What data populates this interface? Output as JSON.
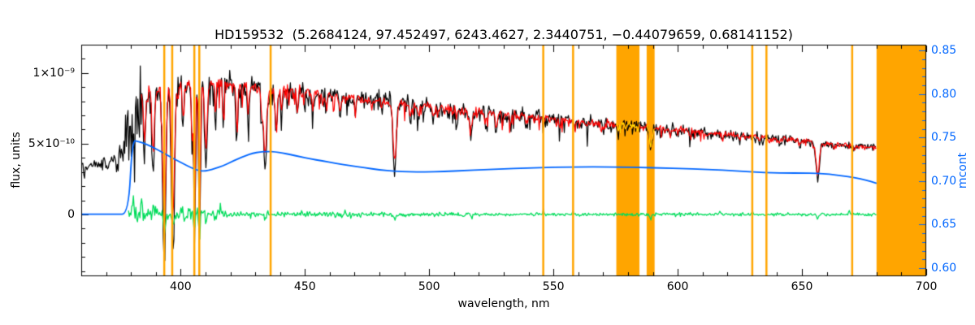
{
  "title": "HD159532  (5.2684124, 97.452497, 6243.4627, 2.3440751, −0.44079659, 0.68141152)",
  "star_id": "HD159532",
  "title_values": [
    5.2684124,
    97.452497,
    6243.4627,
    2.3440751,
    -0.44079659,
    0.68141152
  ],
  "colors": {
    "background": "#ffffff",
    "frame": "#000000",
    "observed": "#000000",
    "fit": "#ff0000",
    "fit_in_mask": "#ffe400",
    "residual": "#00dc5a",
    "mcont": "#0066ff",
    "mask": "#ffa500"
  },
  "axes": {
    "x": {
      "label": "wavelength, nm",
      "major_ticks": [
        400,
        450,
        500,
        550,
        600,
        650,
        700
      ],
      "minor_step": 10
    },
    "y_left": {
      "label": "flux, units",
      "ticks": [
        {
          "value_1e10": 0,
          "label": "0"
        },
        {
          "value_1e10": 5,
          "label": "5×10⁻¹⁰"
        },
        {
          "value_1e10": 10,
          "label": "1×10⁻⁹"
        }
      ],
      "minor_step_1e10": 1
    },
    "y_right": {
      "label": "mcont",
      "ticks": [
        {
          "value": 0.6,
          "label": "0.60"
        },
        {
          "value": 0.65,
          "label": "0.65"
        },
        {
          "value": 0.7,
          "label": "0.70"
        },
        {
          "value": 0.75,
          "label": "0.75"
        },
        {
          "value": 0.8,
          "label": "0.80"
        },
        {
          "value": 0.85,
          "label": "0.85"
        }
      ],
      "minor_step": 0.01
    }
  },
  "chart_data": {
    "type": "line",
    "title": "HD159532  (5.2684124, 97.452497, 6243.4627, 2.3440751, −0.44079659, 0.68141152)",
    "xlabel": "wavelength, nm",
    "ylabel_left": "flux, units",
    "ylabel_right": "mcont",
    "xlim": [
      360,
      700
    ],
    "ylim_left": [
      -4.37e-10,
      1.2e-09
    ],
    "ylim_left_1e10": [
      -4.37,
      12.0
    ],
    "ylim_right": [
      0.5907,
      0.8566
    ],
    "flux_unit_scale": 1e-10,
    "grid": false,
    "legend": "none",
    "series": {
      "observed": {
        "name": "observed spectrum",
        "color_key": "observed",
        "axis": "left",
        "range_nm": [
          360,
          680
        ],
        "continuum_1e10": [
          [
            360,
            3.4
          ],
          [
            364,
            3.5
          ],
          [
            368,
            3.5
          ],
          [
            372,
            3.6
          ],
          [
            376,
            4.6
          ],
          [
            380,
            7.2
          ],
          [
            383,
            8.5
          ],
          [
            386,
            8.7
          ],
          [
            390,
            8.9
          ],
          [
            394,
            9.1
          ],
          [
            398,
            9.25
          ],
          [
            402,
            9.2
          ],
          [
            406,
            9.1
          ],
          [
            410,
            9.2
          ],
          [
            414,
            9.3
          ],
          [
            418,
            9.25
          ],
          [
            422,
            9.15
          ],
          [
            426,
            9.05
          ],
          [
            430,
            9.0
          ],
          [
            435,
            8.9
          ],
          [
            440,
            8.8
          ],
          [
            445,
            8.75
          ],
          [
            450,
            8.65
          ],
          [
            455,
            8.55
          ],
          [
            460,
            8.45
          ],
          [
            465,
            8.35
          ],
          [
            470,
            8.25
          ],
          [
            475,
            8.15
          ],
          [
            480,
            8.05
          ],
          [
            485,
            7.95
          ],
          [
            490,
            7.85
          ],
          [
            495,
            7.75
          ],
          [
            500,
            7.65
          ],
          [
            505,
            7.55
          ],
          [
            510,
            7.45
          ],
          [
            515,
            7.38
          ],
          [
            520,
            7.3
          ],
          [
            525,
            7.2
          ],
          [
            530,
            7.12
          ],
          [
            535,
            7.05
          ],
          [
            540,
            6.97
          ],
          [
            545,
            6.9
          ],
          [
            550,
            6.82
          ],
          [
            555,
            6.74
          ],
          [
            560,
            6.66
          ],
          [
            565,
            6.58
          ],
          [
            570,
            6.5
          ],
          [
            575,
            6.42
          ],
          [
            580,
            6.33
          ],
          [
            585,
            6.25
          ],
          [
            590,
            6.17
          ],
          [
            595,
            6.08
          ],
          [
            600,
            6.0
          ],
          [
            605,
            5.92
          ],
          [
            610,
            5.84
          ],
          [
            615,
            5.76
          ],
          [
            620,
            5.68
          ],
          [
            625,
            5.6
          ],
          [
            630,
            5.52
          ],
          [
            635,
            5.44
          ],
          [
            640,
            5.36
          ],
          [
            645,
            5.28
          ],
          [
            650,
            5.2
          ],
          [
            655,
            5.12
          ],
          [
            660,
            5.02
          ],
          [
            665,
            4.95
          ],
          [
            670,
            4.88
          ],
          [
            675,
            4.82
          ],
          [
            680,
            4.76
          ]
        ]
      },
      "fit": {
        "name": "fitted template spectrum",
        "color_key": "fit",
        "axis": "left",
        "range_nm": [
          384.2,
          680
        ],
        "line_depth_factor": 0.82,
        "noise_factor": 0.6
      },
      "residual": {
        "name": "residual (observed - fit)",
        "color_key": "residual",
        "axis": "left",
        "range_nm": [
          379,
          680
        ],
        "zero_level_1e10": 0,
        "amplitude_profile": [
          [
            379,
            0.55
          ],
          [
            386,
            0.55
          ],
          [
            386.1,
            0.4
          ],
          [
            418,
            0.4
          ],
          [
            418.1,
            0.22
          ],
          [
            470,
            0.22
          ],
          [
            470.1,
            0.15
          ],
          [
            520,
            0.15
          ],
          [
            520.1,
            0.11
          ],
          [
            680,
            0.11
          ]
        ],
        "spikes": [
          {
            "nm": 380.8,
            "amp": 1.5,
            "width": 0.5
          },
          {
            "nm": 382.6,
            "amp": -1.0,
            "width": 0.35
          },
          {
            "nm": 384.2,
            "amp": 1.2,
            "width": 0.4
          },
          {
            "nm": 389.0,
            "amp": 0.7,
            "width": 0.4
          },
          {
            "nm": 393.4,
            "amp": -2.1,
            "width": 0.45
          },
          {
            "nm": 396.9,
            "amp": -1.9,
            "width": 0.45
          },
          {
            "nm": 400.3,
            "amp": 0.9,
            "width": 0.35
          },
          {
            "nm": 405.5,
            "amp": -2.0,
            "width": 0.4
          },
          {
            "nm": 407.6,
            "amp": -2.2,
            "width": 0.4
          },
          {
            "nm": 410.2,
            "amp": -0.8,
            "width": 0.5
          },
          {
            "nm": 416.0,
            "amp": 0.5,
            "width": 0.35
          },
          {
            "nm": 434.0,
            "amp": -0.6,
            "width": 0.5
          },
          {
            "nm": 452.0,
            "amp": 0.35,
            "width": 0.35
          },
          {
            "nm": 486.1,
            "amp": -0.5,
            "width": 0.5
          },
          {
            "nm": 517.0,
            "amp": -0.3,
            "width": 0.4
          },
          {
            "nm": 546.0,
            "amp": 0.45,
            "width": 0.35
          },
          {
            "nm": 557.9,
            "amp": 0.35,
            "width": 0.3
          },
          {
            "nm": 589.2,
            "amp": -0.4,
            "width": 0.5
          },
          {
            "nm": 617.0,
            "amp": 0.25,
            "width": 0.3
          },
          {
            "nm": 630.0,
            "amp": 0.3,
            "width": 0.3
          },
          {
            "nm": 656.3,
            "amp": -0.55,
            "width": 0.5
          },
          {
            "nm": 669.0,
            "amp": 0.3,
            "width": 0.3
          }
        ]
      },
      "mcont": {
        "name": "multiplicative continuum (mcont)",
        "color_key": "mcont",
        "axis": "right",
        "points": [
          [
            360,
            0.662
          ],
          [
            368,
            0.662
          ],
          [
            374,
            0.662
          ],
          [
            379,
            0.662
          ],
          [
            380.5,
            0.747
          ],
          [
            383,
            0.7455
          ],
          [
            386,
            0.7425
          ],
          [
            389,
            0.7385
          ],
          [
            392,
            0.734
          ],
          [
            395,
            0.729
          ],
          [
            398,
            0.7245
          ],
          [
            401,
            0.72
          ],
          [
            404,
            0.7155
          ],
          [
            407,
            0.7122
          ],
          [
            409,
            0.7115
          ],
          [
            411,
            0.712
          ],
          [
            414,
            0.7145
          ],
          [
            417,
            0.7175
          ],
          [
            420,
            0.7215
          ],
          [
            423,
            0.7255
          ],
          [
            426,
            0.729
          ],
          [
            429,
            0.732
          ],
          [
            432,
            0.7335
          ],
          [
            435,
            0.734
          ],
          [
            438,
            0.7335
          ],
          [
            441,
            0.7322
          ],
          [
            444,
            0.7305
          ],
          [
            448,
            0.728
          ],
          [
            452,
            0.7255
          ],
          [
            457,
            0.7232
          ],
          [
            462,
            0.7205
          ],
          [
            468,
            0.7178
          ],
          [
            474,
            0.7152
          ],
          [
            480,
            0.713
          ],
          [
            486,
            0.7112
          ],
          [
            492,
            0.7105
          ],
          [
            498,
            0.7105
          ],
          [
            506,
            0.711
          ],
          [
            514,
            0.712
          ],
          [
            522,
            0.713
          ],
          [
            530,
            0.714
          ],
          [
            538,
            0.7148
          ],
          [
            546,
            0.7155
          ],
          [
            554,
            0.716
          ],
          [
            562,
            0.7163
          ],
          [
            570,
            0.7163
          ],
          [
            578,
            0.716
          ],
          [
            586,
            0.7155
          ],
          [
            594,
            0.715
          ],
          [
            602,
            0.7143
          ],
          [
            610,
            0.7135
          ],
          [
            618,
            0.7125
          ],
          [
            626,
            0.7112
          ],
          [
            632,
            0.7102
          ],
          [
            638,
            0.7095
          ],
          [
            644,
            0.7092
          ],
          [
            650,
            0.7092
          ],
          [
            656,
            0.7088
          ],
          [
            661,
            0.7078
          ],
          [
            666,
            0.7062
          ],
          [
            671,
            0.7042
          ],
          [
            676,
            0.701
          ],
          [
            680,
            0.6975
          ]
        ]
      }
    },
    "absorption_lines": [
      {
        "nm": 385.5,
        "depth": 4.5,
        "width": 0.5
      },
      {
        "nm": 388.9,
        "depth": 5.5,
        "width": 0.7
      },
      {
        "nm": 393.4,
        "depth": 11.8,
        "width": 0.9
      },
      {
        "nm": 396.9,
        "depth": 11.2,
        "width": 0.9
      },
      {
        "nm": 400.9,
        "depth": 3.0,
        "width": 0.4
      },
      {
        "nm": 404.6,
        "depth": 4.0,
        "width": 0.4
      },
      {
        "nm": 405.6,
        "depth": 10.5,
        "width": 0.5
      },
      {
        "nm": 407.6,
        "depth": 11.0,
        "width": 0.5
      },
      {
        "nm": 410.2,
        "depth": 5.5,
        "width": 0.7
      },
      {
        "nm": 414.0,
        "depth": 2.5,
        "width": 0.4
      },
      {
        "nm": 417.2,
        "depth": 2.8,
        "width": 0.4
      },
      {
        "nm": 422.7,
        "depth": 3.5,
        "width": 0.5
      },
      {
        "nm": 427.2,
        "depth": 2.5,
        "width": 0.4
      },
      {
        "nm": 432.6,
        "depth": 2.2,
        "width": 0.4
      },
      {
        "nm": 434.0,
        "depth": 5.8,
        "width": 0.8
      },
      {
        "nm": 438.4,
        "depth": 3.0,
        "width": 0.6
      },
      {
        "nm": 440.5,
        "depth": 2.0,
        "width": 0.4
      },
      {
        "nm": 447.0,
        "depth": 1.8,
        "width": 0.4
      },
      {
        "nm": 453.1,
        "depth": 1.5,
        "width": 0.4
      },
      {
        "nm": 458.7,
        "depth": 1.3,
        "width": 0.4
      },
      {
        "nm": 464.2,
        "depth": 1.5,
        "width": 0.5
      },
      {
        "nm": 470.3,
        "depth": 1.2,
        "width": 0.4
      },
      {
        "nm": 486.1,
        "depth": 4.9,
        "width": 0.9
      },
      {
        "nm": 492.4,
        "depth": 1.0,
        "width": 0.4
      },
      {
        "nm": 495.7,
        "depth": 0.9,
        "width": 0.4
      },
      {
        "nm": 501.6,
        "depth": 1.0,
        "width": 0.4
      },
      {
        "nm": 511.0,
        "depth": 0.9,
        "width": 0.4
      },
      {
        "nm": 516.7,
        "depth": 1.8,
        "width": 0.8
      },
      {
        "nm": 522.7,
        "depth": 1.1,
        "width": 0.5
      },
      {
        "nm": 527.0,
        "depth": 1.5,
        "width": 0.6
      },
      {
        "nm": 532.8,
        "depth": 0.8,
        "width": 0.4
      },
      {
        "nm": 539.0,
        "depth": 0.7,
        "width": 0.4
      },
      {
        "nm": 546.0,
        "depth": 0.8,
        "width": 0.4
      },
      {
        "nm": 552.5,
        "depth": 0.7,
        "width": 0.4
      },
      {
        "nm": 558.7,
        "depth": 0.6,
        "width": 0.4
      },
      {
        "nm": 563.5,
        "depth": 0.6,
        "width": 0.4
      },
      {
        "nm": 570.0,
        "depth": 0.6,
        "width": 0.4
      },
      {
        "nm": 576.0,
        "depth": 0.5,
        "width": 0.4
      },
      {
        "nm": 589.2,
        "depth": 1.6,
        "width": 0.8
      },
      {
        "nm": 597.0,
        "depth": 0.5,
        "width": 0.4
      },
      {
        "nm": 605.0,
        "depth": 0.5,
        "width": 0.4
      },
      {
        "nm": 612.2,
        "depth": 0.5,
        "width": 0.4
      },
      {
        "nm": 618.0,
        "depth": 0.4,
        "width": 0.4
      },
      {
        "nm": 625.0,
        "depth": 0.5,
        "width": 0.4
      },
      {
        "nm": 633.0,
        "depth": 0.4,
        "width": 0.4
      },
      {
        "nm": 641.0,
        "depth": 0.4,
        "width": 0.4
      },
      {
        "nm": 649.0,
        "depth": 0.4,
        "width": 0.4
      },
      {
        "nm": 656.3,
        "depth": 2.6,
        "width": 1.0
      },
      {
        "nm": 663.0,
        "depth": 0.4,
        "width": 0.4
      },
      {
        "nm": 671.0,
        "depth": 0.4,
        "width": 0.4
      }
    ],
    "masked_lines_nm": [
      393.4,
      396.6,
      405.5,
      407.5,
      436.2,
      545.9,
      557.9,
      630.0,
      635.7,
      670.2
    ],
    "masked_bands_nm": [
      [
        575.3,
        584.6
      ],
      [
        587.5,
        590.7
      ],
      [
        680.0,
        700.0
      ]
    ],
    "noise": {
      "seed_observed": 101,
      "seed_fit": 202,
      "seed_residual": 303,
      "step_nm": 0.33
    }
  }
}
